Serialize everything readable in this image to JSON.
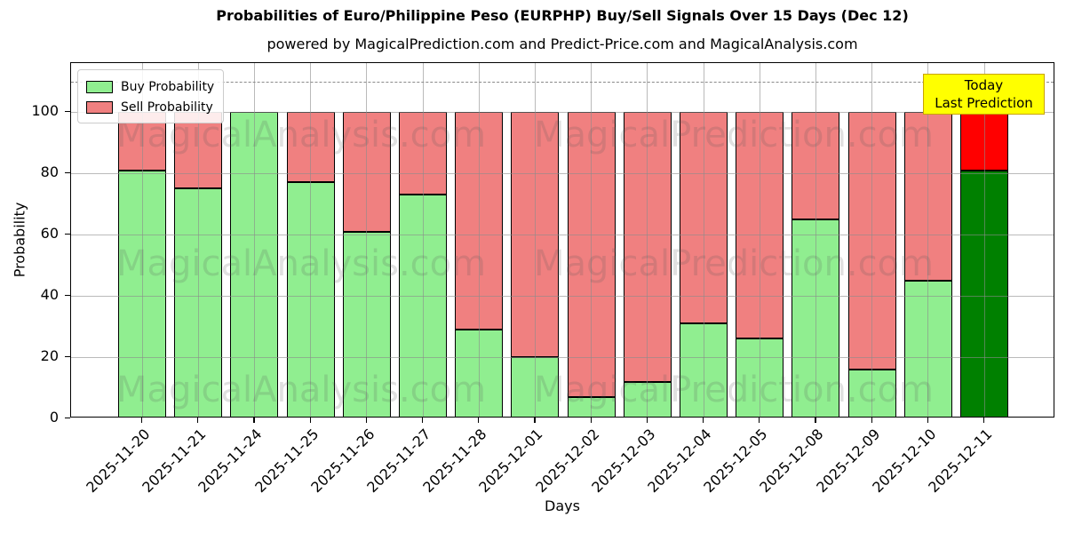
{
  "header": {
    "title": "Probabilities of Euro/Philippine Peso (EURPHP) Buy/Sell Signals Over 15 Days (Dec 12)",
    "subtitle": "powered by MagicalPrediction.com and Predict-Price.com and MagicalAnalysis.com"
  },
  "legend": {
    "items": [
      {
        "label": "Buy Probability",
        "color": "#90ee90"
      },
      {
        "label": "Sell Probability",
        "color": "#f08080"
      }
    ]
  },
  "annotation": {
    "lines": [
      "Today",
      "Last Prediction"
    ],
    "bg": "#ffff00",
    "border": "#c9a302"
  },
  "watermarks": {
    "left_text": "MagicalAnalysis.com",
    "right_text": "MagicalPrediction.com",
    "rows": 3
  },
  "axes": {
    "xlabel": "Days",
    "ylabel": "Probability",
    "yticks": [
      0,
      20,
      40,
      60,
      80,
      100
    ],
    "ylim": [
      0,
      116
    ],
    "dashed_line_y": 110
  },
  "chart_data": {
    "type": "bar",
    "stacked": true,
    "title": "Probabilities of Euro/Philippine Peso (EURPHP) Buy/Sell Signals Over 15 Days (Dec 12)",
    "xlabel": "Days",
    "ylabel": "Probability",
    "ylim": [
      0,
      116
    ],
    "grid": true,
    "legend_position": "upper left",
    "categories": [
      "2025-11-20",
      "2025-11-21",
      "2025-11-24",
      "2025-11-25",
      "2025-11-26",
      "2025-11-27",
      "2025-11-28",
      "2025-12-01",
      "2025-12-02",
      "2025-12-03",
      "2025-12-04",
      "2025-12-05",
      "2025-12-08",
      "2025-12-09",
      "2025-12-10",
      "2025-12-11"
    ],
    "series": [
      {
        "name": "Buy Probability",
        "values": [
          81,
          75,
          100,
          77,
          61,
          73,
          29,
          20,
          7,
          12,
          31,
          26,
          65,
          16,
          45,
          81
        ]
      },
      {
        "name": "Sell Probability",
        "values": [
          19,
          25,
          0,
          23,
          39,
          27,
          71,
          80,
          93,
          88,
          69,
          74,
          35,
          84,
          55,
          19
        ]
      }
    ],
    "colors": {
      "buy": "#90ee90",
      "sell": "#f08080",
      "today_buy": "#008000",
      "today_sell": "#ff0000"
    },
    "today_index": 15
  }
}
